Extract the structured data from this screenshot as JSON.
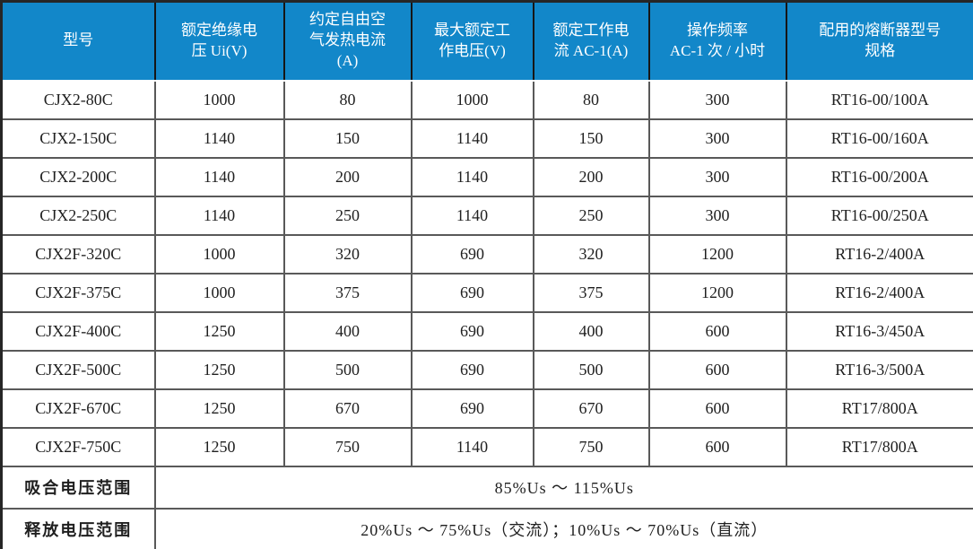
{
  "table": {
    "columns": [
      {
        "label": "型号"
      },
      {
        "label": "额定绝缘电\n压 Ui(V)"
      },
      {
        "label": "约定自由空\n气发热电流\n(A)"
      },
      {
        "label": "最大额定工\n作电压(V)"
      },
      {
        "label": "额定工作电\n流 AC-1(A)"
      },
      {
        "label": "操作频率\nAC-1 次 / 小时"
      },
      {
        "label": "配用的熔断器型号\n规格"
      }
    ],
    "rows": [
      [
        "CJX2-80C",
        "1000",
        "80",
        "1000",
        "80",
        "300",
        "RT16-00/100A"
      ],
      [
        "CJX2-150C",
        "1140",
        "150",
        "1140",
        "150",
        "300",
        "RT16-00/160A"
      ],
      [
        "CJX2-200C",
        "1140",
        "200",
        "1140",
        "200",
        "300",
        "RT16-00/200A"
      ],
      [
        "CJX2-250C",
        "1140",
        "250",
        "1140",
        "250",
        "300",
        "RT16-00/250A"
      ],
      [
        "CJX2F-320C",
        "1000",
        "320",
        "690",
        "320",
        "1200",
        "RT16-2/400A"
      ],
      [
        "CJX2F-375C",
        "1000",
        "375",
        "690",
        "375",
        "1200",
        "RT16-2/400A"
      ],
      [
        "CJX2F-400C",
        "1250",
        "400",
        "690",
        "400",
        "600",
        "RT16-3/450A"
      ],
      [
        "CJX2F-500C",
        "1250",
        "500",
        "690",
        "500",
        "600",
        "RT16-3/500A"
      ],
      [
        "CJX2F-670C",
        "1250",
        "670",
        "690",
        "670",
        "600",
        "RT17/800A"
      ],
      [
        "CJX2F-750C",
        "1250",
        "750",
        "1140",
        "750",
        "600",
        "RT17/800A"
      ]
    ],
    "footer_rows": [
      {
        "label": "吸合电压范围",
        "value": "85%Us ～ 115%Us"
      },
      {
        "label": "释放电压范围",
        "value": "20%Us ～ 75%Us（交流）；10%Us ～ 70%Us（直流）"
      }
    ]
  },
  "colors": {
    "header_bg": "#1287c9",
    "header_text": "#ffffff",
    "grid_line": "#595959",
    "outer_border": "#262626"
  }
}
